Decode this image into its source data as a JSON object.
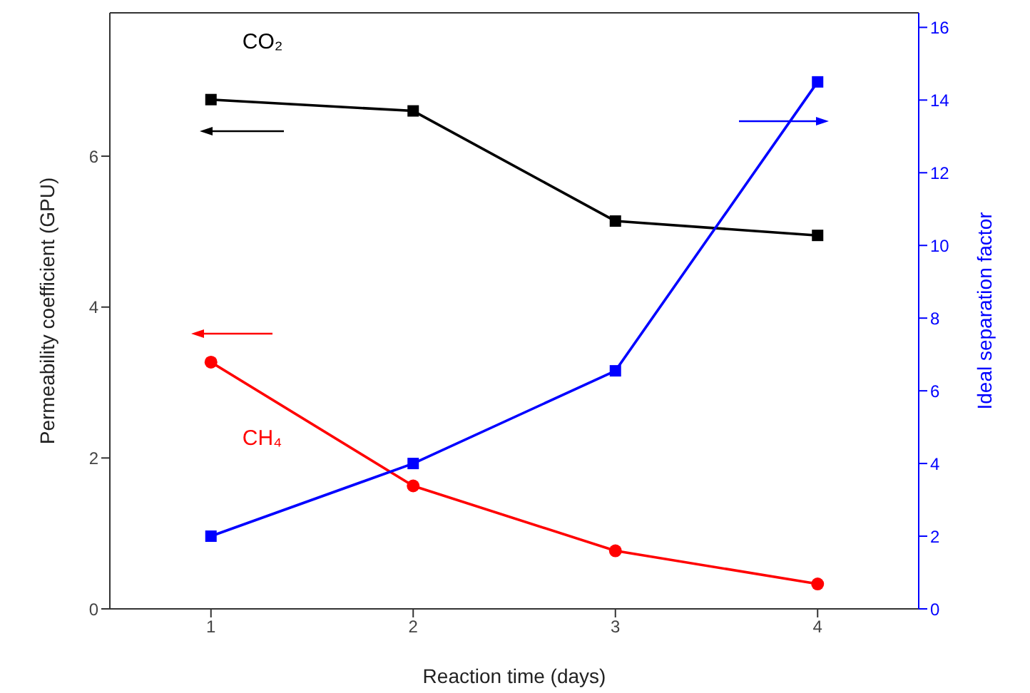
{
  "chart_data": {
    "type": "line",
    "xlabel": "Reaction time (days)",
    "ylabel": "Permeability coefficient (GPU)",
    "y2label": "Ideal separation factor",
    "x": [
      1,
      2,
      3,
      4
    ],
    "xlim": [
      0.5,
      4.5
    ],
    "xticks": [
      1,
      2,
      3,
      4
    ],
    "ylim": [
      0,
      7.9
    ],
    "yticks": [
      0,
      2,
      4,
      6
    ],
    "y2lim": [
      0,
      16.4
    ],
    "y2ticks": [
      0,
      2,
      4,
      6,
      8,
      10,
      12,
      14,
      16
    ],
    "legend": false,
    "grid": false,
    "series": [
      {
        "name": "CO₂",
        "color": "#000000",
        "marker": "square",
        "values": [
          6.75,
          6.6,
          5.14,
          4.95
        ]
      },
      {
        "name": "CH₄",
        "color": "#ff0000",
        "marker": "circle",
        "values": [
          3.27,
          1.63,
          0.77,
          0.33
        ]
      },
      {
        "color": "#0000ff",
        "marker": "square",
        "axis": "y2",
        "values": [
          2.0,
          4.0,
          6.55,
          14.5
        ]
      }
    ]
  }
}
